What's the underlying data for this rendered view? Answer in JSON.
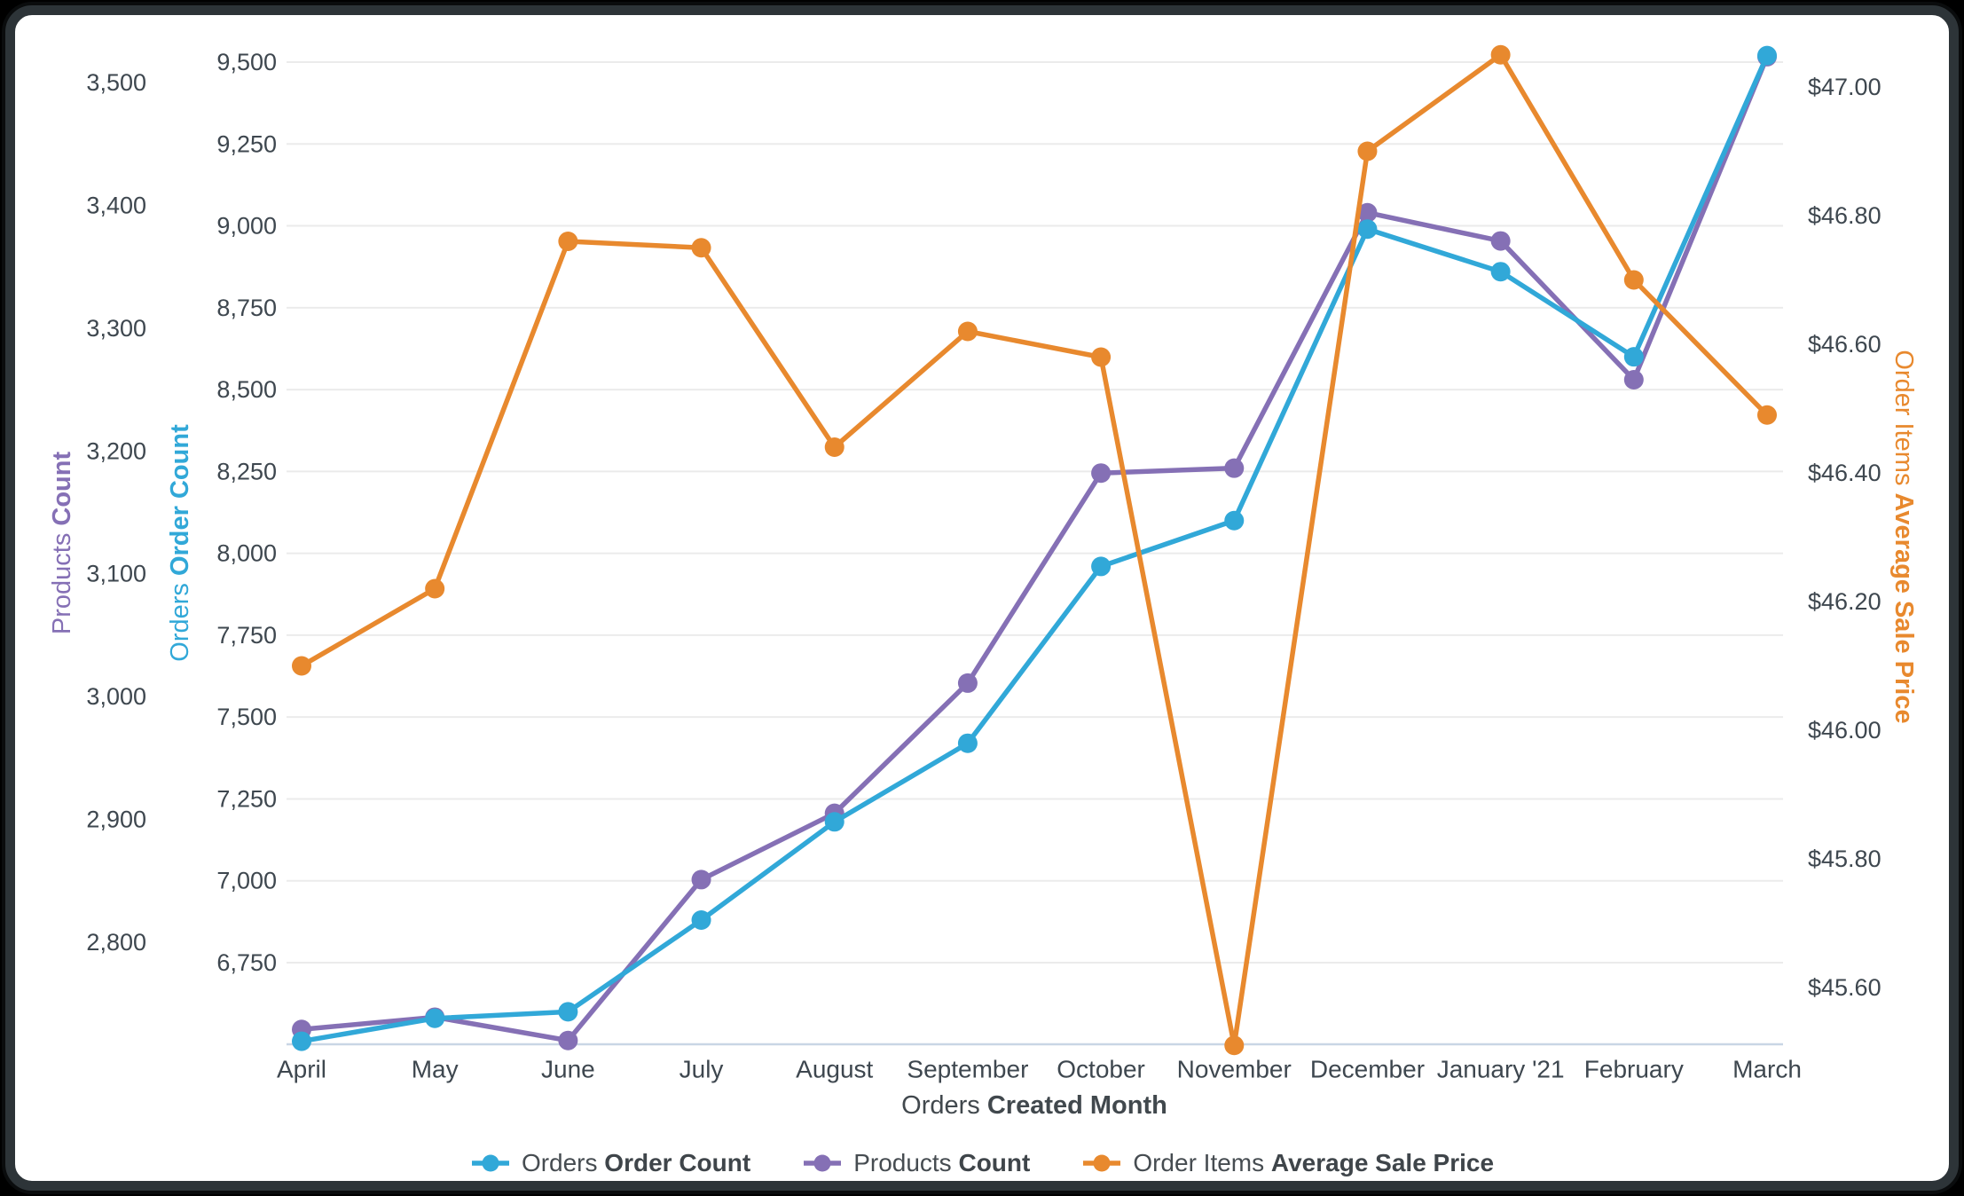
{
  "card": {
    "type": "looker-visualization-card"
  },
  "chart_data": {
    "type": "line",
    "title": "",
    "categories": [
      "April",
      "May",
      "June",
      "July",
      "August",
      "September",
      "October",
      "November",
      "December",
      "January '21",
      "February",
      "March"
    ],
    "x_axis": {
      "title_regular": "Orders ",
      "title_bold": "Created Month"
    },
    "axes": {
      "left_outer": {
        "title_regular": "Products ",
        "title_bold": "Count",
        "color": "#8570b5",
        "tick_labels": [
          "2,800",
          "2,900",
          "3,000",
          "3,100",
          "3,200",
          "3,300",
          "3,400",
          "3,500"
        ],
        "tick_values": [
          2800,
          2900,
          3000,
          3100,
          3200,
          3300,
          3400,
          3500
        ],
        "range": [
          2717,
          3527
        ]
      },
      "left_inner": {
        "title_regular": "Orders ",
        "title_bold": "Order Count",
        "color": "#31a8d8",
        "tick_labels": [
          "6,750",
          "7,000",
          "7,250",
          "7,500",
          "7,750",
          "8,000",
          "8,250",
          "8,500",
          "8,750",
          "9,000",
          "9,250",
          "9,500"
        ],
        "tick_values": [
          6750,
          7000,
          7250,
          7500,
          7750,
          8000,
          8250,
          8500,
          8750,
          9000,
          9250,
          9500
        ],
        "range": [
          6500,
          9525
        ],
        "gridlines": true
      },
      "right": {
        "title_regular": "Order Items ",
        "title_bold": "Average Sale Price",
        "color": "#e8892e",
        "tick_labels": [
          "$45.60",
          "$45.80",
          "$46.00",
          "$46.20",
          "$46.40",
          "$46.60",
          "$46.80",
          "$47.00"
        ],
        "tick_values": [
          45.6,
          45.8,
          46.0,
          46.2,
          46.4,
          46.6,
          46.8,
          47.0
        ],
        "range": [
          45.51,
          47.06
        ]
      }
    },
    "series": [
      {
        "id": "products-count",
        "legend_regular": "Products ",
        "legend_bold": "Count",
        "color": "#8570b5",
        "axis": "left_outer",
        "values": [
          2729,
          2739,
          2720,
          2851,
          2905,
          3011,
          3182,
          3186,
          3394,
          3371,
          3258,
          3521
        ]
      },
      {
        "id": "orders-order-count",
        "legend_regular": "Orders ",
        "legend_bold": "Order Count",
        "color": "#31a8d8",
        "axis": "left_inner",
        "values": [
          6510,
          6580,
          6600,
          6880,
          7180,
          7420,
          7960,
          8100,
          8990,
          8860,
          8600,
          9520
        ]
      },
      {
        "id": "order-items-average-sale-price",
        "legend_regular": "Order Items ",
        "legend_bold": "Average Sale Price",
        "color": "#e8892e",
        "axis": "right",
        "values": [
          46.1,
          46.22,
          46.76,
          46.75,
          46.44,
          46.62,
          46.58,
          45.51,
          46.9,
          47.05,
          46.7,
          46.49
        ]
      }
    ],
    "legend_order": [
      "orders-order-count",
      "products-count",
      "order-items-average-sale-price"
    ],
    "style": {
      "grid_color": "#ebebeb",
      "baseline_color": "#c9d6e5",
      "tick_text_color": "#3e474f",
      "month_text_color": "#3e474f",
      "x_title_color": "#41484d",
      "card_background": "#ffffff",
      "frame_color": "#2d3438",
      "page_background": "#000000"
    },
    "legend_position": "bottom"
  }
}
